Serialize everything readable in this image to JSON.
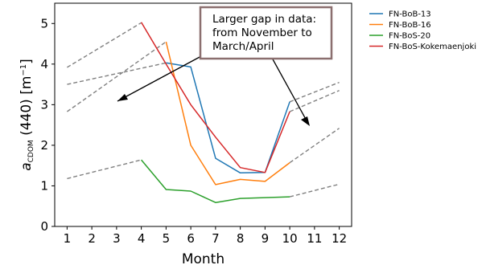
{
  "chart_data": {
    "type": "line",
    "title": "",
    "xlabel": "Month",
    "ylabel_main": "a",
    "ylabel_sub": "CDOM",
    "ylabel_rest": " (440) [m",
    "ylabel_sup": "−1",
    "ylabel_close": "]",
    "xlim": [
      0.5,
      12.5
    ],
    "ylim": [
      0,
      5.5
    ],
    "x_ticks": [
      1,
      2,
      3,
      4,
      5,
      6,
      7,
      8,
      9,
      10,
      11,
      12
    ],
    "y_ticks": [
      0,
      1,
      2,
      3,
      4,
      5
    ],
    "grid": false,
    "legend_position": "outside-right",
    "series": [
      {
        "name": "FN-BoB-13",
        "color": "#1f77b4",
        "x": [
          5,
          6,
          7,
          8,
          9,
          10
        ],
        "y": [
          4.03,
          3.93,
          1.68,
          1.32,
          1.33,
          3.07
        ]
      },
      {
        "name": "FN-BoB-16",
        "color": "#ff7f0e",
        "x": [
          5,
          6,
          7,
          8,
          9,
          10
        ],
        "y": [
          4.55,
          2.0,
          1.03,
          1.16,
          1.11,
          1.57
        ]
      },
      {
        "name": "FN-BoS-20",
        "color": "#2ca02c",
        "x": [
          4,
          5,
          6,
          7,
          8,
          9,
          10
        ],
        "y": [
          1.64,
          0.91,
          0.87,
          0.59,
          0.69,
          0.71,
          0.73
        ]
      },
      {
        "name": "FN-BoS-Kokemaenjoki",
        "color": "#d62728",
        "x": [
          4,
          5,
          6,
          7,
          8,
          9,
          10
        ],
        "y": [
          5.03,
          4.0,
          3.0,
          2.2,
          1.45,
          1.33,
          2.83
        ]
      }
    ],
    "gap_lines": {
      "color": "#808080",
      "segments": [
        {
          "x": [
            1,
            4
          ],
          "y": [
            3.92,
            5.02
          ]
        },
        {
          "x": [
            1,
            5
          ],
          "y": [
            3.5,
            4.03
          ]
        },
        {
          "x": [
            1,
            5
          ],
          "y": [
            2.83,
            4.55
          ]
        },
        {
          "x": [
            1,
            4
          ],
          "y": [
            1.18,
            1.64
          ]
        },
        {
          "x": [
            10,
            12
          ],
          "y": [
            3.07,
            3.55
          ]
        },
        {
          "x": [
            10,
            12
          ],
          "y": [
            2.83,
            3.35
          ]
        },
        {
          "x": [
            10,
            12
          ],
          "y": [
            1.57,
            2.42
          ]
        },
        {
          "x": [
            10,
            12
          ],
          "y": [
            0.73,
            1.04
          ]
        }
      ]
    },
    "annotation": {
      "lines": [
        "Larger gap in data:",
        "from November to",
        "March/April"
      ],
      "border_color": "#8b6f6f"
    }
  }
}
